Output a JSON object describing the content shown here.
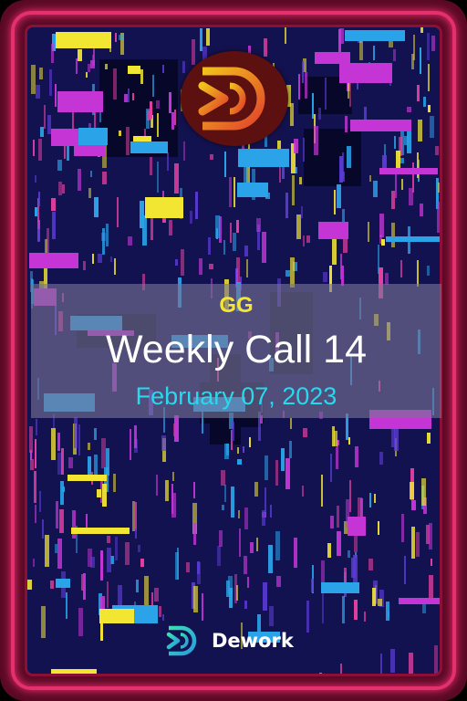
{
  "card": {
    "organization": "GG",
    "title": "Weekly Call 14",
    "date": "February 07, 2023",
    "brand_name": "Dework",
    "logo_icon": "dework-logo-icon",
    "brand_icon": "dework-brand-icon"
  },
  "colors": {
    "frame": "#e5306e",
    "background": "#131250",
    "organization_text": "#f3e633",
    "title_text": "#ffffff",
    "date_text": "#27d9ee",
    "glitch_palette": [
      "#f3e633",
      "#c535d6",
      "#2aa3e8",
      "#e23fa0",
      "#5b3bd6"
    ]
  }
}
